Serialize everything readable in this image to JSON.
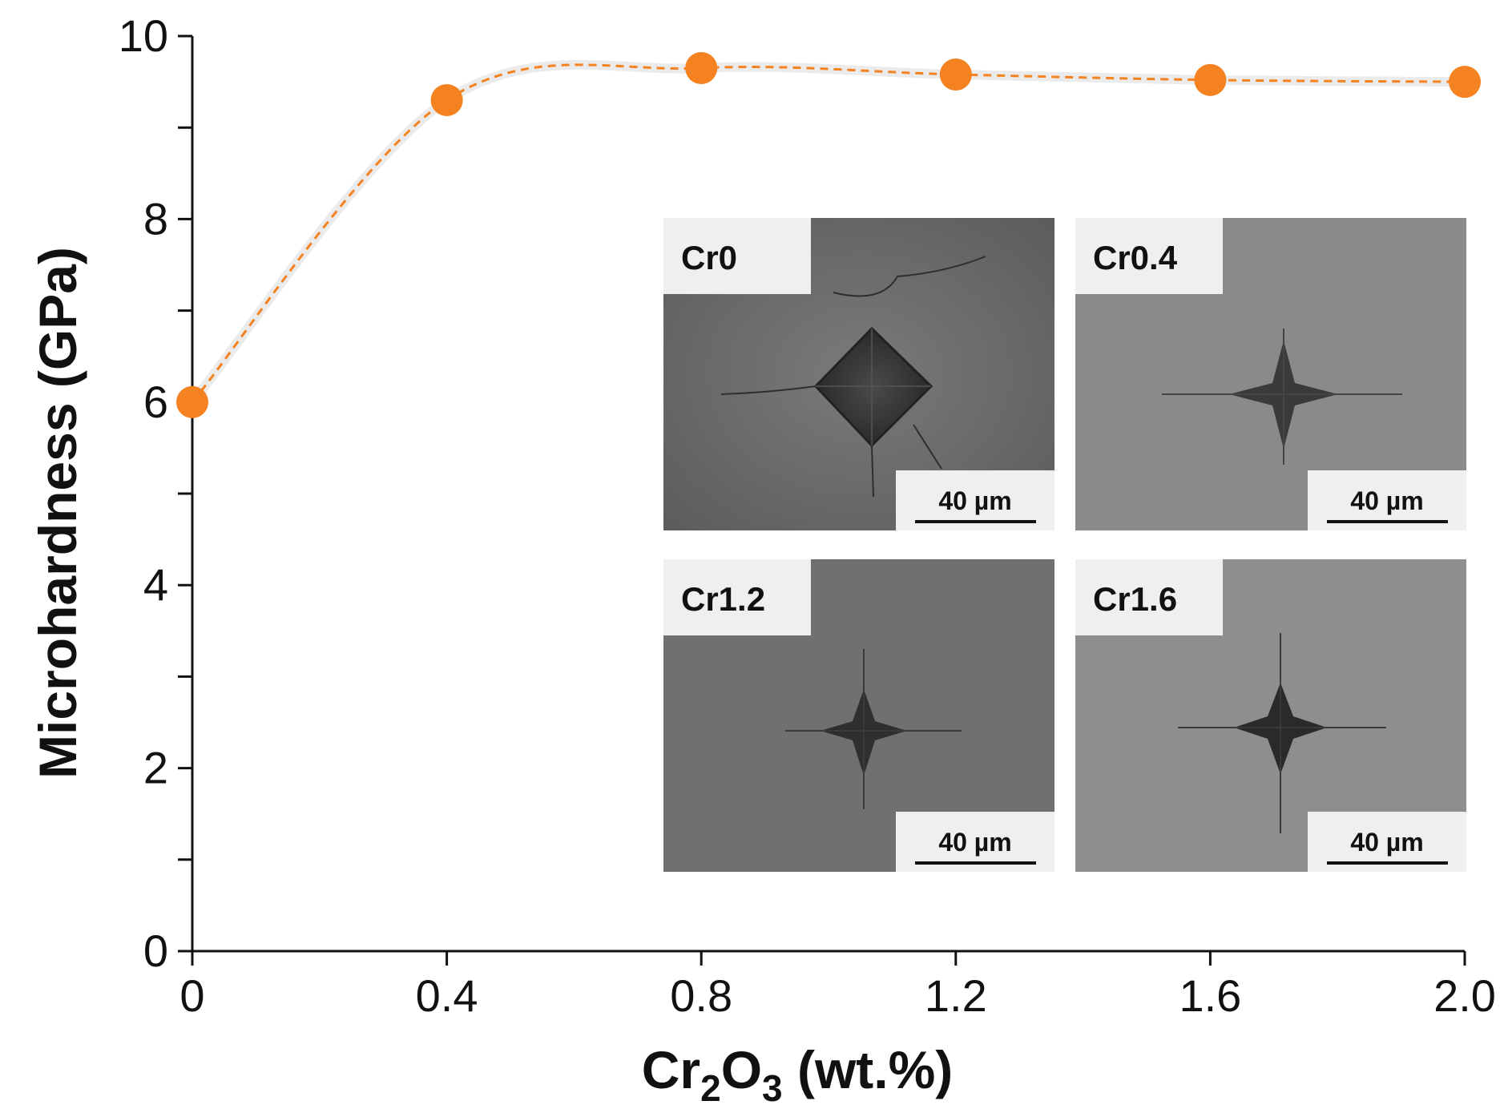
{
  "chart_data": {
    "type": "line",
    "title": "",
    "xlabel": "Cr2O3 (wt.%)",
    "ylabel": "Microhardness (GPa)",
    "xlim": [
      0,
      2.0
    ],
    "ylim": [
      0,
      10
    ],
    "x_ticks": [
      {
        "value": 0,
        "label": "0"
      },
      {
        "value": 0.4,
        "label": "0.4"
      },
      {
        "value": 0.8,
        "label": "0.8"
      },
      {
        "value": 1.2,
        "label": "1.2"
      },
      {
        "value": 1.6,
        "label": "1.6"
      },
      {
        "value": 2.0,
        "label": "2.0"
      }
    ],
    "y_ticks": [
      {
        "value": 0,
        "label": "0"
      },
      {
        "value": 2,
        "label": "2"
      },
      {
        "value": 4,
        "label": "4"
      },
      {
        "value": 6,
        "label": "6"
      },
      {
        "value": 8,
        "label": "8"
      },
      {
        "value": 10,
        "label": "10"
      }
    ],
    "y_minor_step": 1,
    "series": [
      {
        "name": "Microhardness",
        "color": "#F58220",
        "line_style": "dashed-smooth",
        "x": [
          0,
          0.4,
          0.8,
          1.2,
          1.6,
          2.0
        ],
        "y": [
          6.0,
          9.3,
          9.65,
          9.58,
          9.52,
          9.5
        ]
      }
    ]
  },
  "inset_panels": [
    {
      "label": "Cr0",
      "scale_bar": "40 µm"
    },
    {
      "label": "Cr0.4",
      "scale_bar": "40 µm"
    },
    {
      "label": "Cr1.2",
      "scale_bar": "40 µm"
    },
    {
      "label": "Cr1.6",
      "scale_bar": "40 µm"
    }
  ],
  "colors": {
    "axis": "#111111",
    "series": "#F58220",
    "micrograph_bg": "#6a6a6a",
    "label_box": "#efefef"
  }
}
